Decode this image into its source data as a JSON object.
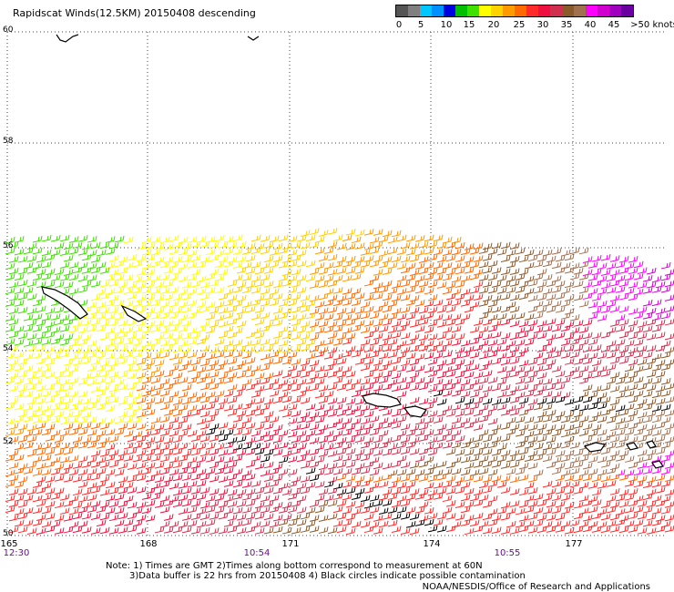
{
  "title": "Rapidscat Winds(12.5KM) 20150408 descending",
  "colorbar": {
    "colors": [
      "#555555",
      "#7f7f7f",
      "#00c8ff",
      "#0090ff",
      "#0000e0",
      "#00c000",
      "#40e000",
      "#ffff00",
      "#ffd200",
      "#ff9a00",
      "#ff6a00",
      "#ff2a2a",
      "#ee1040",
      "#d03050",
      "#8b5a2b",
      "#a07050",
      "#ff00ff",
      "#d000d0",
      "#a000c0",
      "#6a00a0"
    ],
    "labels": [
      "0",
      "5",
      "10",
      "15",
      "20",
      "25",
      "30",
      "35",
      "40",
      "45",
      ">50 knots"
    ]
  },
  "map": {
    "lat_labels": [
      "60",
      "58",
      "56",
      "54",
      "52",
      "50"
    ],
    "lon_labels": [
      "165",
      "168",
      "171",
      "174",
      "177"
    ],
    "time_labels": [
      "12:30",
      "10:54",
      "10:55"
    ]
  },
  "notes": {
    "line1": "Note: 1) Times are GMT 2)Times along bottom correspond to measurement at 60N",
    "line2": "3)Data buffer is 22 hrs from 20150408 4) Black circles indicate possible contamination"
  },
  "credit": "NOAA/NESDIS/Office of Research and Applications"
}
